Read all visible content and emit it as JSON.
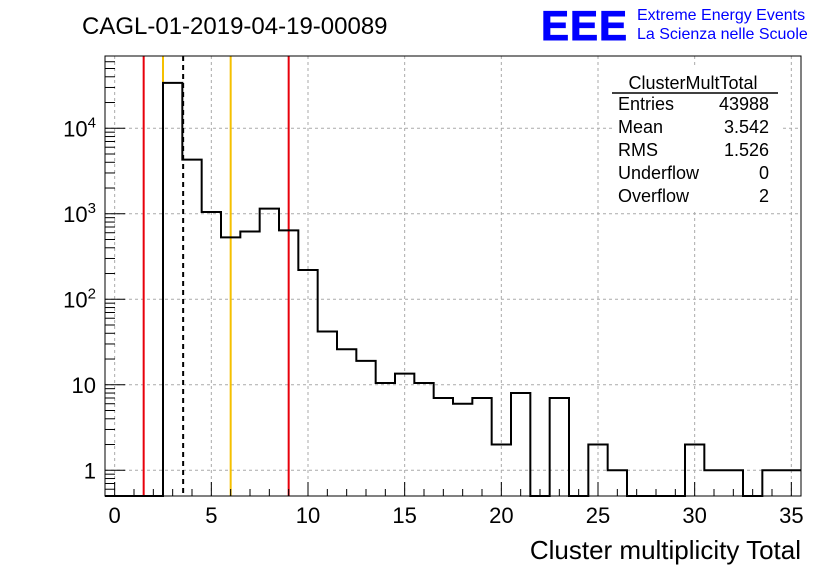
{
  "header": {
    "run_title": "CAGL-01-2019-04-19-00089",
    "logo_text": "EEE",
    "logo_line1": "Extreme Energy Events",
    "logo_line2": "La Scienza nelle Scuole"
  },
  "stats": {
    "title": "ClusterMultTotal",
    "rows": [
      {
        "label": "Entries",
        "value": "43988"
      },
      {
        "label": "Mean",
        "value": "3.542"
      },
      {
        "label": "RMS",
        "value": "1.526"
      },
      {
        "label": "Underflow",
        "value": "0"
      },
      {
        "label": "Overflow",
        "value": "2"
      }
    ]
  },
  "colors": {
    "histogram": "#000000",
    "red_line": "#e8000b",
    "yellow_line": "#f5c000",
    "logo_blue": "#0000ff",
    "grid": "#aaaaaa"
  },
  "chart_data": {
    "type": "histogram",
    "title": "",
    "xlabel": "Cluster multiplicity Total",
    "ylabel": "",
    "xlim": [
      -0.5,
      35.5
    ],
    "ylim": [
      0.5,
      70000
    ],
    "log_y": true,
    "grid": true,
    "x_ticks": [
      "0",
      "5",
      "10",
      "15",
      "20",
      "25",
      "30",
      "35"
    ],
    "y_ticks": [
      "1",
      "10",
      "10^2",
      "10^3",
      "10^4"
    ],
    "bin_width": 1,
    "bin_centers": [
      0,
      1,
      2,
      3,
      4,
      5,
      6,
      7,
      8,
      9,
      10,
      11,
      12,
      13,
      14,
      15,
      16,
      17,
      18,
      19,
      20,
      21,
      22,
      23,
      24,
      25,
      26,
      27,
      28,
      29,
      30,
      31,
      32,
      33,
      34,
      35
    ],
    "values": [
      0,
      0,
      0,
      34000,
      4300,
      1050,
      530,
      620,
      1150,
      640,
      220,
      42,
      26,
      19,
      10.5,
      13.5,
      10.5,
      7,
      6,
      7,
      2,
      8,
      0,
      7,
      0,
      2,
      1,
      0,
      0,
      0,
      2,
      1,
      1,
      0,
      1,
      1
    ],
    "vertical_lines": [
      {
        "x": 1.5,
        "color": "red",
        "style": "solid"
      },
      {
        "x": 2.5,
        "color": "yellow",
        "style": "solid"
      },
      {
        "x": 3.542,
        "color": "black",
        "style": "dashed"
      },
      {
        "x": 6.0,
        "color": "yellow",
        "style": "solid"
      },
      {
        "x": 9.0,
        "color": "red",
        "style": "solid"
      }
    ]
  }
}
